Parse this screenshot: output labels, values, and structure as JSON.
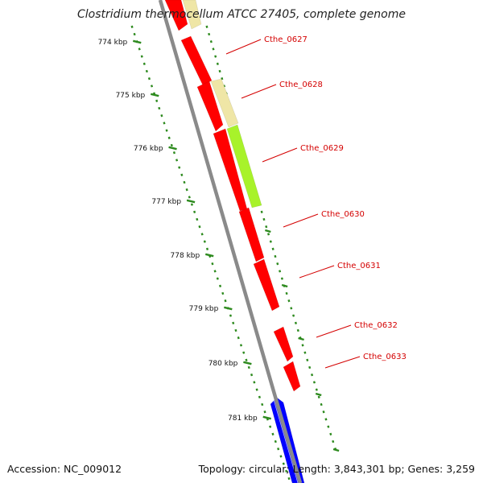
{
  "title": "Clostridium thermocellum ATCC 27405, complete genome",
  "footer": {
    "accession": "Accession: NC_009012",
    "summary": "Topology: circular; Length: 3,843,301 bp; Genes: 3,259"
  },
  "ruler_ticks": [
    "774 kbp",
    "775 kbp",
    "776 kbp",
    "777 kbp",
    "778 kbp",
    "779 kbp",
    "780 kbp",
    "781 kbp"
  ],
  "gene_labels": [
    "Cthe_0627",
    "Cthe_0628",
    "Cthe_0629",
    "Cthe_0630",
    "Cthe_0631",
    "Cthe_0632",
    "Cthe_0633"
  ],
  "colors": {
    "gene_red": "#ff0000",
    "gene_tan": "#efe6a6",
    "gene_green": "#a8f22a",
    "gene_blue": "#0000ff",
    "backbone": "#8a8a8a",
    "ruler_green": "#2d8a1e",
    "label_red": "#d40000"
  }
}
